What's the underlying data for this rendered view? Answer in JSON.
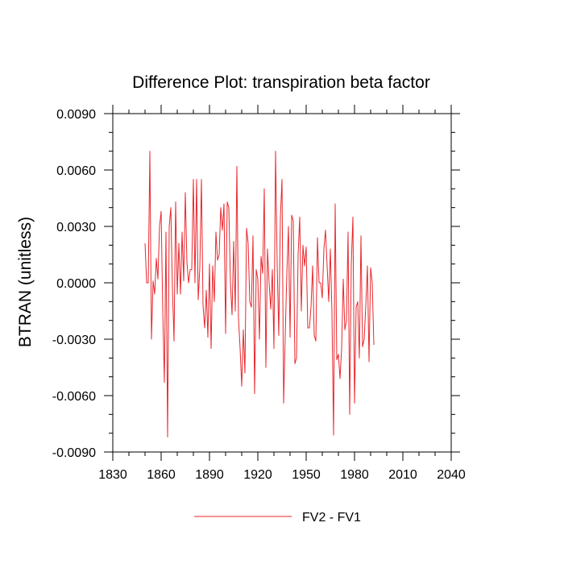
{
  "chart_data": {
    "type": "line",
    "title": "Difference Plot: transpiration beta factor",
    "ylabel": "BTRAN  (unitless)",
    "xlabel": "",
    "xlim": [
      1830,
      2040
    ],
    "ylim": [
      -0.009,
      0.009
    ],
    "xticks": [
      "1830",
      "1860",
      "1890",
      "1920",
      "1950",
      "1980",
      "2010",
      "2040"
    ],
    "yticks": [
      "-0.0090",
      "-0.0060",
      "-0.0030",
      "0.0000",
      "0.0030",
      "0.0060",
      "0.0090"
    ],
    "grid": false,
    "legend_position": "bottom-center",
    "series": [
      {
        "name": "FV2 - FV1",
        "color": "#e8272d",
        "x_start": 1850,
        "x_step": 1,
        "values": [
          0.0021,
          0.0,
          0.0,
          0.007,
          -0.003,
          0.0001,
          -0.0006,
          0.0013,
          0.0002,
          0.003,
          0.0038,
          -0.0015,
          -0.0053,
          0.0027,
          -0.0082,
          0.003,
          0.004,
          -0.0003,
          -0.0031,
          0.0043,
          -0.0006,
          0.0021,
          -0.0006,
          0.0027,
          0.0001,
          0.0048,
          0.0011,
          0.0,
          0.0007,
          0.0007,
          0.0055,
          0.0,
          0.0055,
          -0.0009,
          0.0008,
          0.0055,
          -0.0012,
          -0.0024,
          -0.0004,
          -0.0029,
          0.001,
          -0.0035,
          0.0009,
          -0.001,
          0.0027,
          0.0012,
          0.0015,
          0.004,
          0.0028,
          0.0042,
          -0.0027,
          0.0043,
          0.004,
          0.0,
          -0.0017,
          0.0022,
          -0.0015,
          0.0062,
          -0.0019,
          -0.0035,
          -0.0055,
          -0.0025,
          -0.0048,
          0.0029,
          0.0021,
          -0.001,
          -0.0013,
          0.0025,
          -0.0059,
          0.0007,
          0.0002,
          -0.003,
          0.0014,
          0.0005,
          0.005,
          -0.0045,
          0.0018,
          0.0,
          -0.0014,
          0.0007,
          -0.0035,
          0.007,
          0.001,
          -0.0028,
          0.0035,
          0.0055,
          -0.0064,
          -0.0028,
          0.0005,
          0.003,
          -0.0029,
          0.0036,
          0.0033,
          -0.0043,
          -0.004,
          0.0015,
          0.0035,
          -0.0015,
          0.002,
          0.0009,
          0.0019,
          -0.0024,
          -0.0024,
          -0.0013,
          0.0009,
          -0.0028,
          -0.0031,
          0.0024,
          0.0,
          0.0,
          -0.0008,
          0.0018,
          0.0028,
          0.0009,
          -0.001,
          0.0018,
          -0.0016,
          -0.0081,
          0.0042,
          -0.0041,
          -0.0038,
          -0.0051,
          -0.0035,
          0.0002,
          -0.0025,
          -0.002,
          0.0027,
          -0.007,
          0.001,
          0.0035,
          -0.0064,
          -0.0013,
          -0.001,
          -0.004,
          0.0025,
          -0.0034,
          -0.003,
          -0.0012,
          0.0009,
          -0.0042,
          0.0008,
          0.0,
          -0.0033
        ]
      }
    ]
  }
}
